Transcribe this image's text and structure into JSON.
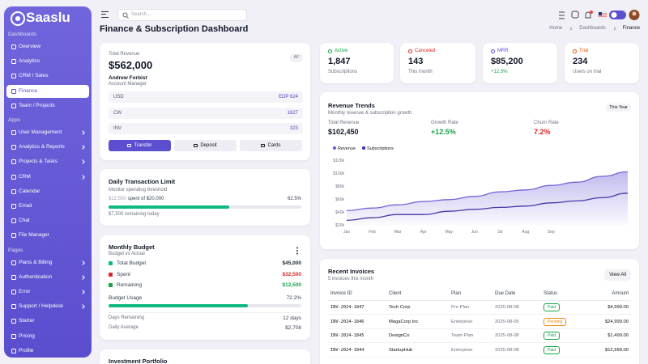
{
  "sidebar": {
    "brand": "Saaslu",
    "sections": [
      {
        "title": "Dashboards",
        "items": [
          {
            "label": "Overview"
          },
          {
            "label": "Analytics"
          },
          {
            "label": "CRM / Sales"
          },
          {
            "label": "Finance",
            "active": true
          },
          {
            "label": "Team / Projects"
          }
        ]
      },
      {
        "title": "Apps",
        "items": [
          {
            "label": "User Management",
            "submenu": true
          },
          {
            "label": "Analytics & Reports",
            "submenu": true
          },
          {
            "label": "Projects & Tasks",
            "submenu": true
          },
          {
            "label": "CRM",
            "submenu": true
          },
          {
            "label": "Calendar"
          },
          {
            "label": "Email"
          },
          {
            "label": "Chat"
          },
          {
            "label": "File Manager"
          }
        ]
      },
      {
        "title": "Pages",
        "items": [
          {
            "label": "Plans & Billing",
            "submenu": true
          },
          {
            "label": "Authentication",
            "submenu": true
          },
          {
            "label": "Error",
            "submenu": true
          },
          {
            "label": "Support / Helpdesk",
            "submenu": true
          },
          {
            "label": "Starter"
          },
          {
            "label": "Pricing"
          },
          {
            "label": "Profile"
          }
        ]
      }
    ]
  },
  "topbar": {
    "search_placeholder": "Search..."
  },
  "header": {
    "title": "Finance & Subscription Dashboard",
    "breadcrumb": [
      "Home",
      "Dashboards",
      "Finance"
    ]
  },
  "revenue_card": {
    "label": "Total Revenue",
    "amount": "$562,000",
    "badge": "AF",
    "name": "Andrew Forbist",
    "role": "Account Manager",
    "rows": [
      [
        "USD",
        "EDP 624"
      ],
      [
        "CW",
        "1827"
      ],
      [
        "INV",
        "323"
      ]
    ],
    "buttons": [
      "Transfer",
      "Deposit",
      "Cards"
    ]
  },
  "limit_card": {
    "title": "Daily Transaction Limit",
    "subtitle": "Monitor spending threshold",
    "spent": "$12,500",
    "spent_of": "spent of $20,000",
    "percent": 62.5,
    "percent_label": "62.5%",
    "remaining": "$7,500 remaining today"
  },
  "budget_card": {
    "title": "Monthly Budget",
    "subtitle": "Budget vs Actual",
    "rows": [
      {
        "label": "Total Budget",
        "value": "$45,000",
        "color": "#1f2937",
        "icon_color": "#10b981"
      },
      {
        "label": "Spent",
        "value": "$32,500",
        "color": "#dc2626",
        "icon_color": "#dc2626"
      },
      {
        "label": "Remaining",
        "value": "$12,500",
        "color": "#16a34a",
        "icon_color": "#16a34a"
      }
    ],
    "usage_label": "Budget Usage",
    "usage": 72.2,
    "usage_label_value": "72.2%",
    "stats": [
      {
        "label": "Days Remaining",
        "value": "12 days"
      },
      {
        "label": "Daily Average",
        "value": "$2,708"
      }
    ]
  },
  "portfolio_card": {
    "title": "Investment Portfolio"
  },
  "stats": [
    {
      "label": "Active",
      "value": "1,847",
      "sub": "Subscriptions",
      "color": "#16a34a",
      "sub_color": "#6b7280"
    },
    {
      "label": "Canceled",
      "value": "143",
      "sub": "This month",
      "color": "#dc2626",
      "sub_color": "#6b7280"
    },
    {
      "label": "MRR",
      "value": "$85,200",
      "sub": "+12.5%",
      "color": "#5b4fcf",
      "sub_color": "#16a34a"
    },
    {
      "label": "Trial",
      "value": "234",
      "sub": "Users on trial",
      "color": "#ea580c",
      "sub_color": "#6b7280"
    }
  ],
  "revenue_trends": {
    "title": "Revenue Trends",
    "subtitle": "Monthly revenue & subscription growth",
    "period": "This Year",
    "metrics": [
      {
        "label": "Total Revenue",
        "value": "$102,450",
        "color": "#111827"
      },
      {
        "label": "Growth Rate",
        "value": "+12.5%",
        "color": "#16a34a"
      },
      {
        "label": "Churn Rate",
        "value": "7.2%",
        "color": "#dc2626"
      }
    ]
  },
  "chart_data": {
    "type": "line",
    "categories": [
      "Jan",
      "Feb",
      "Mar",
      "Apr",
      "May",
      "Jun",
      "Jul",
      "Aug",
      "Sep",
      null,
      null,
      null
    ],
    "series": [
      {
        "name": "Revenue",
        "color": "#7466d6",
        "area": true,
        "values": [
          42000,
          46000,
          51000,
          56000,
          59000,
          64000,
          71000,
          74000,
          81000,
          86000,
          95000,
          102000
        ]
      },
      {
        "name": "Subscriptions",
        "color": "#4338a8",
        "values": [
          27000,
          31000,
          36000,
          36000,
          41000,
          44000,
          47000,
          49000,
          54000,
          57000,
          62000,
          69000
        ]
      }
    ],
    "ylim": [
      20000,
      120000
    ],
    "yticks": [
      {
        "value": 20000,
        "label": "$20k"
      },
      {
        "value": 40000,
        "label": "$40k"
      },
      {
        "value": 60000,
        "label": "$60k"
      },
      {
        "value": 80000,
        "label": "$80k"
      },
      {
        "value": 100000,
        "label": "$100k"
      },
      {
        "value": 120000,
        "label": "$120k"
      }
    ],
    "legend": "top-left",
    "grid": false
  },
  "invoices": {
    "title": "Recent Invoices",
    "subtitle": "5 invoices this month",
    "action": "View All",
    "columns": [
      "Invoice ID",
      "Client",
      "Plan",
      "Due Date",
      "Status",
      "Amount"
    ],
    "rows": [
      {
        "cells": [
          "INV-2024-1847",
          "Tech Corp",
          "Pro Plan",
          "2025-08-08",
          "Paid",
          "$4,999.00"
        ],
        "status_color": "#16a34a"
      },
      {
        "cells": [
          "INV-2024-1846",
          "MegaCorp Inc",
          "Enterprise",
          "2025-08-09",
          "Pending",
          "$24,999.00"
        ],
        "status_color": "#ea8a0c"
      },
      {
        "cells": [
          "INV-2024-1845",
          "DesignCo",
          "Team Plan",
          "2025-08-08",
          "Paid",
          "$1,499.00"
        ],
        "status_color": "#16a34a"
      },
      {
        "cells": [
          "INV-2024-1844",
          "StartupHub",
          "Enterprise",
          "2025-08-08",
          "Paid",
          "$12,999.00"
        ],
        "status_color": "#16a34a"
      }
    ]
  }
}
